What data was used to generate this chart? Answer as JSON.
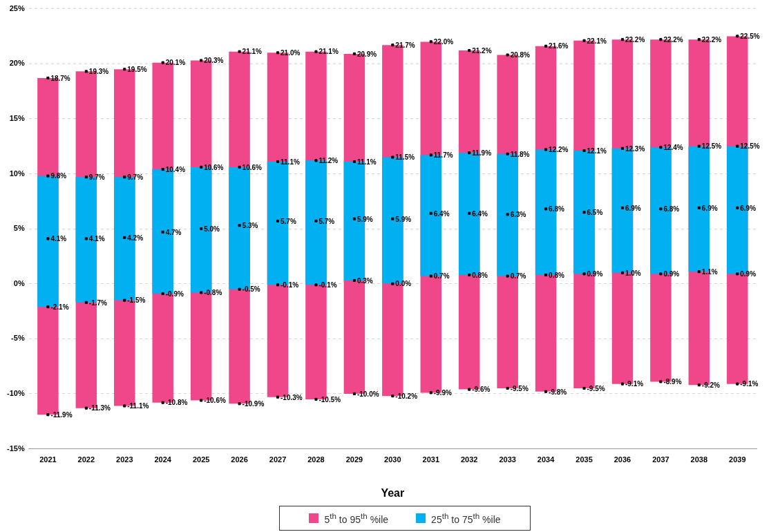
{
  "chart_data": {
    "type": "bar",
    "xlabel": "Year",
    "x": [
      2021,
      2022,
      2023,
      2024,
      2025,
      2026,
      2027,
      2028,
      2029,
      2030,
      2031,
      2032,
      2033,
      2034,
      2035,
      2036,
      2037,
      2038,
      2039
    ],
    "xlim": [
      2020.5,
      2039.5
    ],
    "xticks": [
      2021,
      2022,
      2023,
      2024,
      2025,
      2026,
      2027,
      2028,
      2029,
      2030,
      2031,
      2032,
      2033,
      2034,
      2035,
      2036,
      2037,
      2038,
      2039
    ],
    "series": [
      {
        "name": "5$^{th}$ to 95$^{th}$ %ile",
        "color": "#f0478b",
        "base": [
          -11.9,
          -11.3,
          -11.1,
          -10.8,
          -10.6,
          -10.9,
          -10.3,
          -10.5,
          -10.0,
          -10.2,
          -9.9,
          -9.6,
          -9.5,
          -9.8,
          -9.5,
          -9.1,
          -8.9,
          -9.2,
          -9.1
        ],
        "values": [
          30.6,
          30.6,
          30.6,
          30.9,
          30.9,
          32.0,
          31.3,
          31.6,
          30.9,
          31.9,
          31.9,
          30.8,
          30.3,
          31.4,
          31.6,
          31.3,
          31.1,
          31.4,
          31.6
        ]
      },
      {
        "name": "25$^{th}$ to 75$^{th}$ %ile",
        "color": "#00b0f0",
        "base": [
          -2.1,
          -1.7,
          -1.5,
          -0.9,
          -0.8,
          -0.5,
          -0.1,
          -0.1,
          0.3,
          0.0,
          0.7,
          0.8,
          0.7,
          0.8,
          0.9,
          1.0,
          0.9,
          1.1,
          0.9
        ],
        "values": [
          11.9,
          11.4,
          11.2,
          11.3,
          11.4,
          11.1,
          11.2,
          11.3,
          10.8,
          11.5,
          11.0,
          11.1,
          11.1,
          11.4,
          11.2,
          11.3,
          11.5,
          11.4,
          11.6
        ]
      },
      {
        "type": "scatter",
        "color": "#000000",
        "marker": "square",
        "x": [
          2021,
          2021,
          2021,
          2021,
          2021,
          2022,
          2022,
          2022,
          2022,
          2022,
          2023,
          2023,
          2023,
          2023,
          2023,
          2024,
          2024,
          2024,
          2024,
          2024,
          2025,
          2025,
          2025,
          2025,
          2025,
          2026,
          2026,
          2026,
          2026,
          2026,
          2027,
          2027,
          2027,
          2027,
          2027,
          2028,
          2028,
          2028,
          2028,
          2028,
          2029,
          2029,
          2029,
          2029,
          2029,
          2030,
          2030,
          2030,
          2030,
          2030,
          2031,
          2031,
          2031,
          2031,
          2031,
          2032,
          2032,
          2032,
          2032,
          2032,
          2033,
          2033,
          2033,
          2033,
          2033,
          2034,
          2034,
          2034,
          2034,
          2034,
          2035,
          2035,
          2035,
          2035,
          2035,
          2036,
          2036,
          2036,
          2036,
          2036,
          2037,
          2037,
          2037,
          2037,
          2037,
          2038,
          2038,
          2038,
          2038,
          2038,
          2039,
          2039,
          2039,
          2039,
          2039
        ],
        "values": [
          18.7,
          9.8,
          4.1,
          -2.1,
          -11.9,
          19.3,
          9.7,
          4.1,
          -1.7,
          -11.3,
          19.5,
          9.7,
          4.2,
          -1.5,
          -11.1,
          20.1,
          10.4,
          4.7,
          -0.9,
          -10.8,
          20.3,
          10.6,
          5.0,
          -0.8,
          -10.6,
          21.1,
          10.6,
          5.3,
          -0.5,
          -10.9,
          21.0,
          11.1,
          5.7,
          -0.1,
          -10.3,
          21.1,
          11.2,
          5.7,
          -0.1,
          -10.5,
          20.9,
          11.1,
          5.9,
          0.3,
          -10.0,
          21.7,
          11.5,
          5.9,
          0.0,
          -10.2,
          22.0,
          11.7,
          6.4,
          0.7,
          -9.9,
          21.2,
          11.9,
          6.4,
          0.8,
          -9.6,
          20.8,
          11.8,
          6.3,
          0.7,
          -9.5,
          21.6,
          12.2,
          6.8,
          0.8,
          -9.8,
          22.1,
          12.1,
          6.5,
          0.9,
          -9.5,
          22.2,
          12.3,
          6.9,
          1.0,
          -9.1,
          22.2,
          12.4,
          6.8,
          0.9,
          -8.9,
          22.2,
          12.5,
          6.9,
          1.1,
          -9.2,
          22.5,
          12.5,
          6.9,
          0.9,
          -9.1
        ],
        "value_labels": [
          "18.7%",
          "9.8%",
          "4.1%",
          "-2.1%",
          "-11.9%",
          "19.3%",
          "9.7%",
          "4.1%",
          "-1.7%",
          "-11.3%",
          "19.5%",
          "9.7%",
          "4.2%",
          "-1.5%",
          "-11.1%",
          "20.1%",
          "10.4%",
          "4.7%",
          "-0.9%",
          "-10.8%",
          "20.3%",
          "10.6%",
          "5.0%",
          "-0.8%",
          "-10.6%",
          "21.1%",
          "10.6%",
          "5.3%",
          "-0.5%",
          "-10.9%",
          "21.0%",
          "11.1%",
          "5.7%",
          "-0.1%",
          "-10.3%",
          "21.1%",
          "11.2%",
          "5.7%",
          "-0.1%",
          "-10.5%",
          "20.9%",
          "11.1%",
          "5.9%",
          "0.3%",
          "-10.0%",
          "21.7%",
          "11.5%",
          "5.9%",
          "0.0%",
          "-10.2%",
          "22.0%",
          "11.7%",
          "6.4%",
          "0.7%",
          "-9.9%",
          "21.2%",
          "11.9%",
          "6.4%",
          "0.8%",
          "-9.6%",
          "20.8%",
          "11.8%",
          "6.3%",
          "0.7%",
          "-9.5%",
          "21.6%",
          "12.2%",
          "6.8%",
          "0.8%",
          "-9.8%",
          "22.1%",
          "12.1%",
          "6.5%",
          "0.9%",
          "-9.5%",
          "22.2%",
          "12.3%",
          "6.9%",
          "1.0%",
          "-9.1%",
          "22.2%",
          "12.4%",
          "6.8%",
          "0.9%",
          "-8.9%",
          "22.2%",
          "12.5%",
          "6.9%",
          "1.1%",
          "-9.2%",
          "22.5%",
          "12.5%",
          "6.9%",
          "0.9%",
          "-9.1%"
        ]
      }
    ],
    "ylim": [
      -15,
      25
    ],
    "yticks": [
      {
        "value": -15,
        "label": "-15%"
      },
      {
        "value": -10,
        "label": "-10%"
      },
      {
        "value": -5,
        "label": "-5%"
      },
      {
        "value": 0,
        "label": "0%"
      },
      {
        "value": 5,
        "label": "5%"
      },
      {
        "value": 10,
        "label": "10%"
      },
      {
        "value": 15,
        "label": "15%"
      },
      {
        "value": 20,
        "label": "20%"
      },
      {
        "value": 25,
        "label": "25%"
      }
    ],
    "grid": "y",
    "legend": "bottom"
  }
}
